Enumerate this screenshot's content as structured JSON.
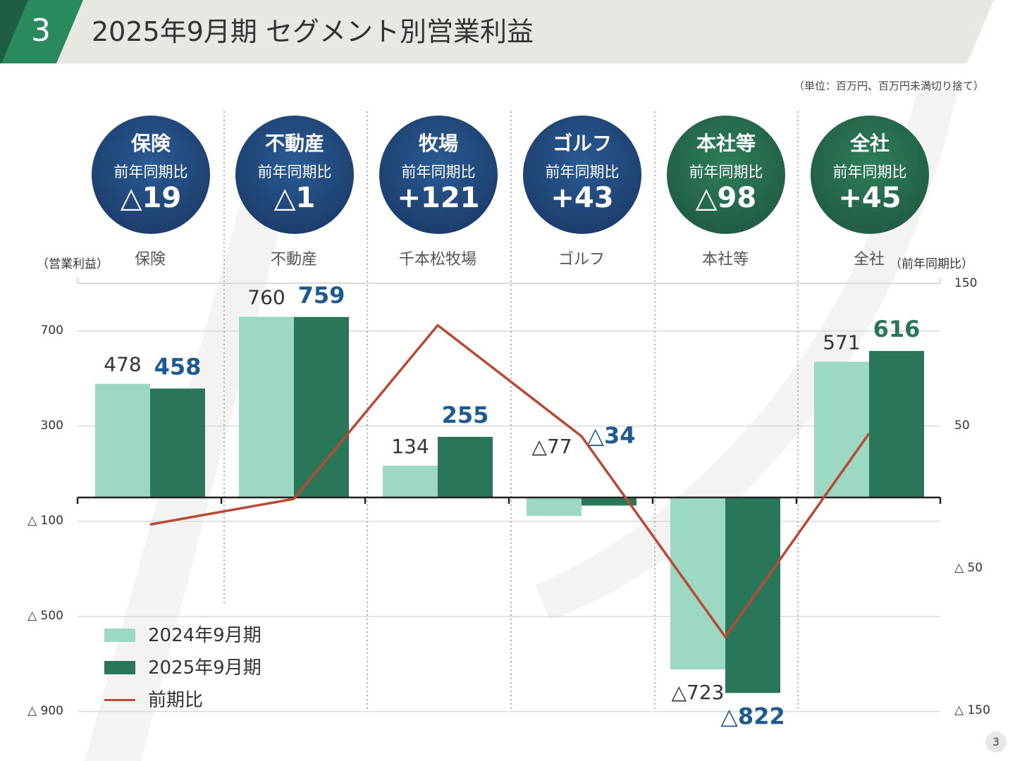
{
  "header": {
    "slide_number": "3",
    "title": "2025年9月期 セグメント別営業利益"
  },
  "unit_note": "（単位：百万円、百万円未満切り捨て）",
  "colors": {
    "prev_bar": "#9dd8c2",
    "curr_bar": "#2a7659",
    "ratio_line": "#b84a35",
    "circle_blue": "#1f4677",
    "circle_green": "#226446",
    "label_blue": "#1f5a8e",
    "label_green": "#2a7659"
  },
  "circles": [
    {
      "segment": "保険",
      "sub": "前年同期比",
      "value": "△19",
      "theme": "blue"
    },
    {
      "segment": "不動産",
      "sub": "前年同期比",
      "value": "△1",
      "theme": "blue"
    },
    {
      "segment": "牧場",
      "sub": "前年同期比",
      "value": "+121",
      "theme": "blue"
    },
    {
      "segment": "ゴルフ",
      "sub": "前年同期比",
      "value": "+43",
      "theme": "blue"
    },
    {
      "segment": "本社等",
      "sub": "前年同期比",
      "value": "△98",
      "theme": "green"
    },
    {
      "segment": "全社",
      "sub": "前年同期比",
      "value": "+45",
      "theme": "green"
    }
  ],
  "axis_titles": {
    "left": "（営業利益）",
    "right": "（前年同期比）"
  },
  "legend": {
    "prev": "2024年9月期",
    "curr": "2025年9月期",
    "line": "前期比"
  },
  "page_number": "3",
  "chart_data": {
    "type": "bar",
    "categories": [
      "保険",
      "不動産",
      "千本松牧場",
      "ゴルフ",
      "本社等",
      "全社"
    ],
    "series": [
      {
        "name": "2024年9月期",
        "values": [
          478,
          760,
          134,
          -77,
          -723,
          571
        ],
        "labels": [
          "478",
          "760",
          "134",
          "△77",
          "△723",
          "571"
        ]
      },
      {
        "name": "2025年9月期",
        "values": [
          458,
          759,
          255,
          -34,
          -822,
          616
        ],
        "labels": [
          "458",
          "759",
          "255",
          "△34",
          "△822",
          "616"
        ]
      }
    ],
    "line_series": {
      "name": "前期比",
      "values": [
        -19,
        -1,
        121,
        43,
        -98,
        45
      ],
      "axis": "right"
    },
    "y_left": {
      "ticks": [
        700,
        300,
        -100,
        -500,
        -900
      ],
      "tick_labels": [
        "700",
        "300",
        "△ 100",
        "△ 500",
        "△ 900"
      ]
    },
    "y_right": {
      "ticks": [
        150,
        50,
        -50,
        -150
      ],
      "tick_labels": [
        "150",
        "50",
        "△ 50",
        "△ 150"
      ]
    },
    "legend_position": "bottom-left",
    "grid": true
  }
}
